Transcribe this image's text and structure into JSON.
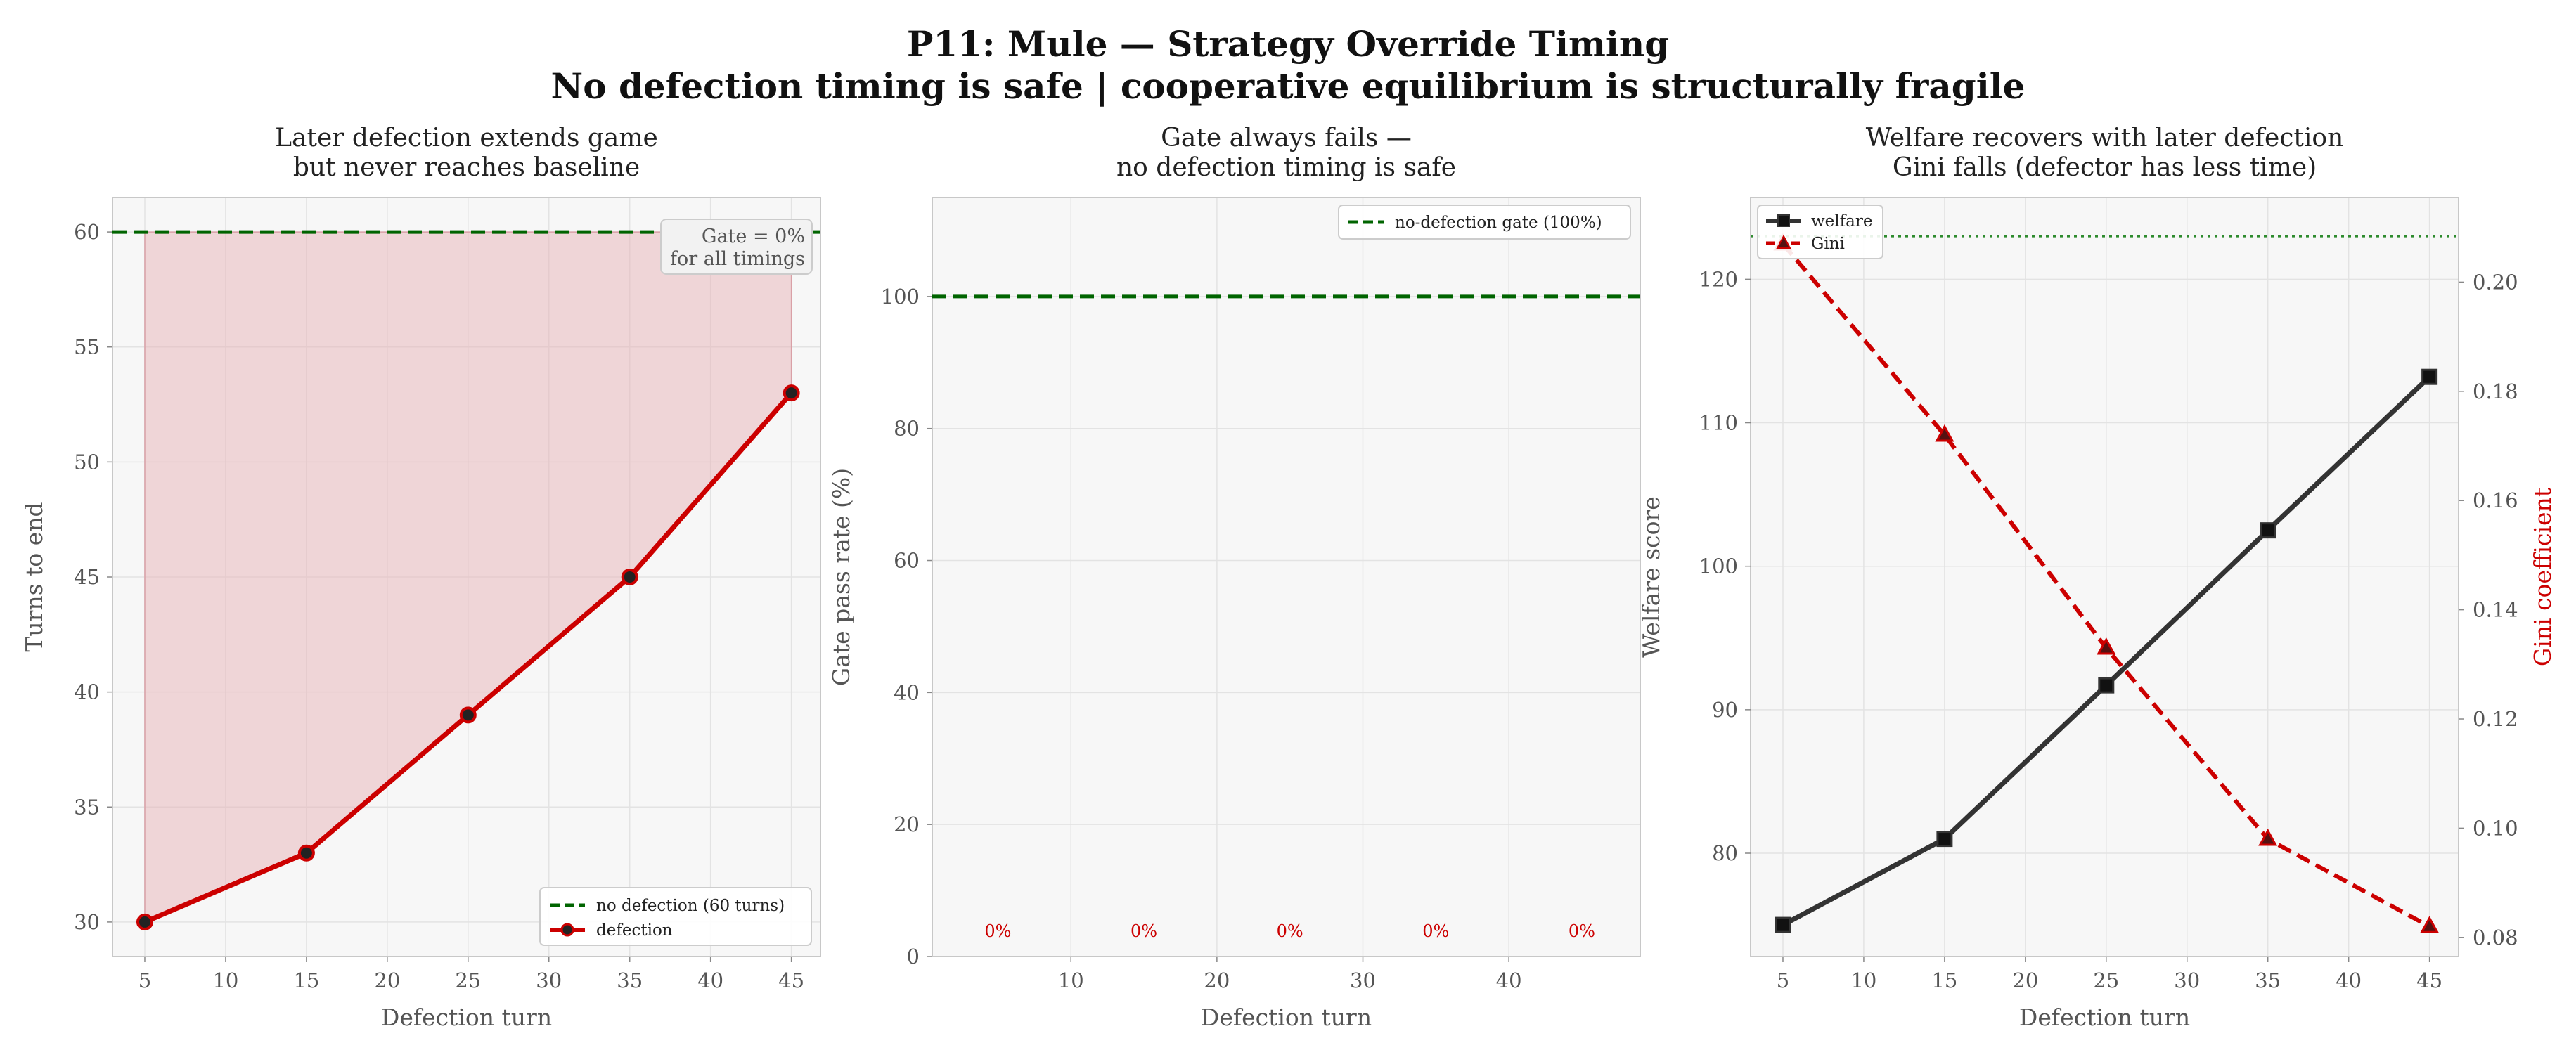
{
  "suptitle": {
    "line1": "P11: Mule — Strategy Override Timing",
    "line2": "No defection timing is safe  |  cooperative equilibrium is structurally fragile"
  },
  "colors": {
    "defection": "#cc0000",
    "baseline": "#006400",
    "welfare": "#333333",
    "gini": "#cc0000",
    "fill": "#e8b4b8",
    "panel_bg": "#f7f7f7"
  },
  "chart_data": [
    {
      "type": "line",
      "title": "Later defection extends game\nbut never reaches baseline",
      "xlabel": "Defection turn",
      "ylabel": "Turns to end",
      "x": [
        5,
        15,
        25,
        35,
        45
      ],
      "series": [
        {
          "name": "defection",
          "values": [
            30,
            33,
            39,
            45,
            53
          ]
        }
      ],
      "baseline": {
        "name": "no defection (60 turns)",
        "value": 60
      },
      "annotation": "Gate = 0%\nfor all timings",
      "xticks": [
        5,
        10,
        15,
        20,
        25,
        30,
        35,
        40,
        45
      ],
      "yticks": [
        30,
        35,
        40,
        45,
        50,
        55,
        60
      ],
      "xlim": [
        3,
        46.8
      ],
      "ylim": [
        28.5,
        61.5
      ],
      "grid": true,
      "legend": "bottom-right"
    },
    {
      "type": "bar",
      "title": "Gate always fails —\nno defection timing is safe",
      "xlabel": "Defection turn",
      "ylabel": "Gate pass rate (%)",
      "x": [
        5,
        15,
        25,
        35,
        45
      ],
      "values": [
        0,
        0,
        0,
        0,
        0
      ],
      "bar_labels": [
        "0%",
        "0%",
        "0%",
        "0%",
        "0%"
      ],
      "baseline": {
        "name": "no-defection gate (100%)",
        "value": 100
      },
      "xticks": [
        10,
        20,
        30,
        40
      ],
      "yticks": [
        0,
        20,
        40,
        60,
        80,
        100
      ],
      "xlim": [
        0.5,
        49
      ],
      "ylim": [
        0,
        115
      ],
      "grid": true,
      "legend": "top-right"
    },
    {
      "type": "line",
      "title": "Welfare recovers with later defection\nGini falls (defector has less time)",
      "xlabel": "Defection turn",
      "ylabel": "Welfare score",
      "y2label": "Gini coefficient",
      "x": [
        5,
        15,
        25,
        35,
        45
      ],
      "series": [
        {
          "name": "welfare",
          "axis": "left",
          "values": [
            75,
            81,
            91.7,
            102.5,
            113.2
          ]
        },
        {
          "name": "Gini",
          "axis": "right",
          "values": [
            0.207,
            0.172,
            0.133,
            0.098,
            0.082
          ]
        }
      ],
      "baseline_welfare": 123,
      "xticks": [
        5,
        10,
        15,
        20,
        25,
        30,
        35,
        40,
        45
      ],
      "yticks": [
        80,
        90,
        100,
        110,
        120
      ],
      "y2ticks": [
        0.08,
        0.1,
        0.12,
        0.14,
        0.16,
        0.18,
        0.2
      ],
      "xlim": [
        3,
        46.8
      ],
      "ylim": [
        72.8,
        125.7
      ],
      "y2lim": [
        0.0765,
        0.2155
      ],
      "grid": true,
      "legend": "top-left"
    }
  ]
}
